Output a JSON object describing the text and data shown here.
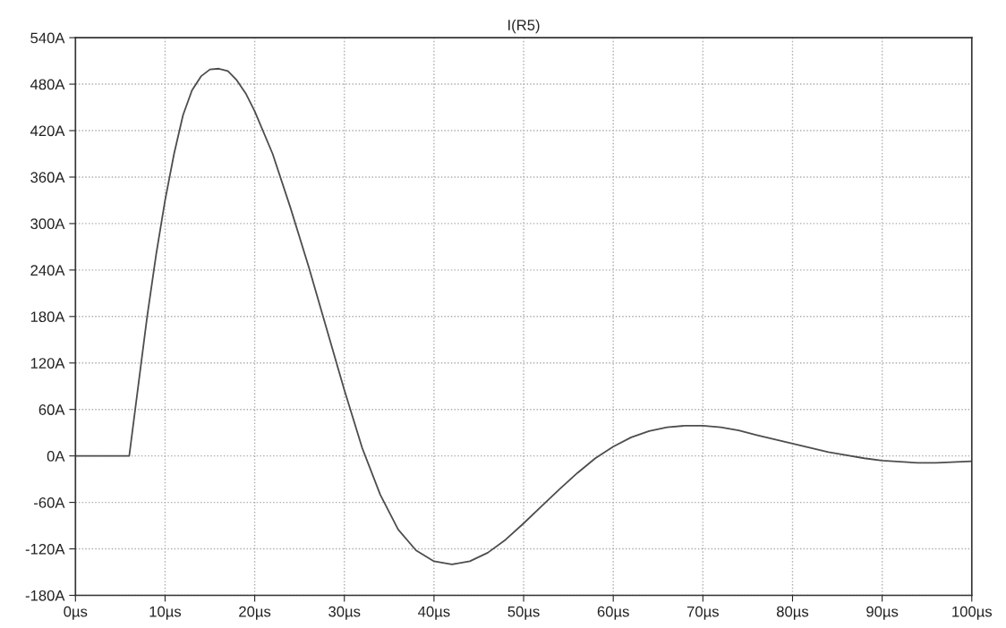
{
  "chart_data": {
    "type": "line",
    "title": "I(R5)",
    "x": [
      0,
      6,
      7,
      8,
      9,
      10,
      11,
      12,
      13,
      14,
      15,
      16,
      17,
      18,
      19,
      20,
      22,
      24,
      26,
      28,
      30,
      32,
      34,
      36,
      38,
      40,
      42,
      44,
      46,
      48,
      50,
      52,
      54,
      56,
      58,
      60,
      62,
      64,
      66,
      68,
      70,
      72,
      74,
      76,
      80,
      84,
      88,
      90,
      94,
      96,
      100
    ],
    "series": [
      {
        "color": "#4d4d4d",
        "values": [
          0,
          0,
          90,
          180,
          260,
          330,
          390,
          440,
          472,
          490,
          499,
          500,
          497,
          485,
          468,
          445,
          390,
          320,
          245,
          165,
          85,
          10,
          -50,
          -95,
          -122,
          -136,
          -140,
          -136,
          -125,
          -108,
          -87,
          -65,
          -43,
          -22,
          -3,
          12,
          24,
          32,
          37,
          39,
          39,
          37,
          33,
          27,
          16,
          5,
          -3,
          -6,
          -9,
          -9,
          -7
        ]
      }
    ],
    "xlim": [
      0,
      100
    ],
    "xticks": [
      {
        "value": 0,
        "label": "0µs"
      },
      {
        "value": 10,
        "label": "10µs"
      },
      {
        "value": 20,
        "label": "20µs"
      },
      {
        "value": 30,
        "label": "30µs"
      },
      {
        "value": 40,
        "label": "40µs"
      },
      {
        "value": 50,
        "label": "50µs"
      },
      {
        "value": 60,
        "label": "60µs"
      },
      {
        "value": 70,
        "label": "70µs"
      },
      {
        "value": 80,
        "label": "80µs"
      },
      {
        "value": 90,
        "label": "90µs"
      },
      {
        "value": 100,
        "label": "100µs"
      }
    ],
    "ylim": [
      -180,
      540
    ],
    "yticks": [
      {
        "value": -180,
        "label": "-180A"
      },
      {
        "value": -120,
        "label": "-120A"
      },
      {
        "value": -60,
        "label": "-60A"
      },
      {
        "value": 0,
        "label": "0A"
      },
      {
        "value": 60,
        "label": "60A"
      },
      {
        "value": 120,
        "label": "120A"
      },
      {
        "value": 180,
        "label": "180A"
      },
      {
        "value": 240,
        "label": "240A"
      },
      {
        "value": 300,
        "label": "300A"
      },
      {
        "value": 360,
        "label": "360A"
      },
      {
        "value": 420,
        "label": "420A"
      },
      {
        "value": 480,
        "label": "480A"
      },
      {
        "value": 540,
        "label": "540A"
      }
    ],
    "grid": true,
    "marker": "none",
    "line_style": "solid"
  }
}
